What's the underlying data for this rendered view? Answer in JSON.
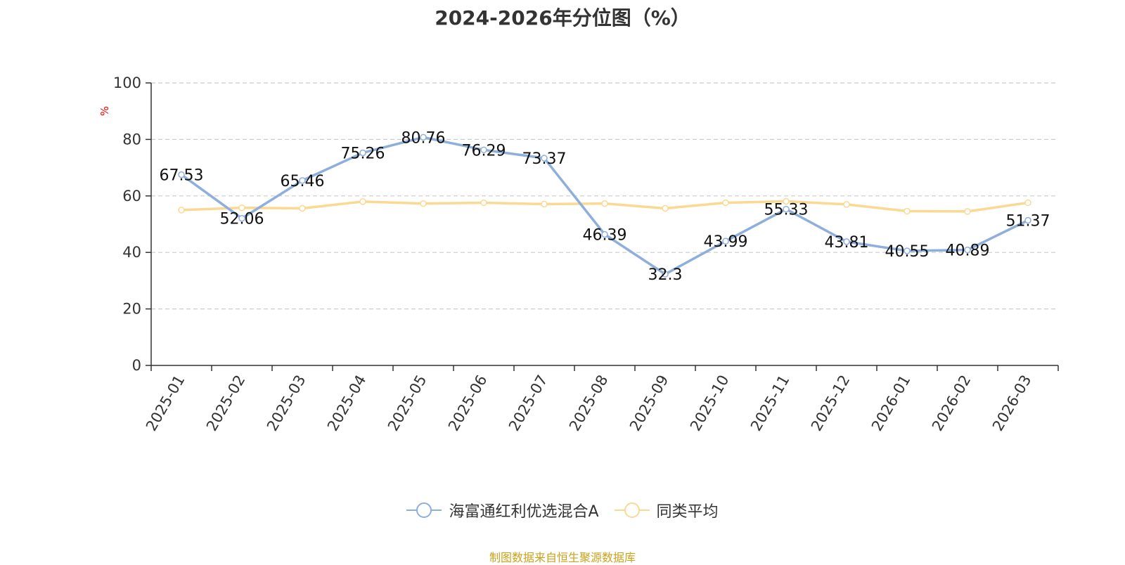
{
  "title": "2024-2026年分位图（%）",
  "source": "制图数据来自恒生聚源数据库",
  "colors": {
    "series1": "#8eaedc",
    "series2": "#fcd992",
    "grid": "#cccccc",
    "axis": "#333333",
    "unit": "#ff0000"
  },
  "chart_data": {
    "type": "line",
    "title": "2024-2026年分位图（%）",
    "ylabel": "%",
    "ylim": [
      0,
      100
    ],
    "yticks": [
      0,
      20,
      40,
      60,
      80,
      100
    ],
    "grid": true,
    "legend_position": "bottom",
    "categories": [
      "2025-01",
      "2025-02",
      "2025-03",
      "2025-04",
      "2025-05",
      "2025-06",
      "2025-07",
      "2025-08",
      "2025-09",
      "2025-10",
      "2025-11",
      "2025-12",
      "2026-01",
      "2026-02",
      "2026-03"
    ],
    "series": [
      {
        "name": "海富通红利优选混合A",
        "values": [
          67.53,
          52.06,
          65.46,
          75.26,
          80.76,
          76.29,
          73.37,
          46.39,
          32.3,
          43.99,
          55.33,
          43.81,
          40.55,
          40.89,
          51.37
        ],
        "show_labels": true
      },
      {
        "name": "同类平均",
        "values": [
          55.0,
          55.8,
          55.6,
          58.0,
          57.3,
          57.6,
          57.1,
          57.3,
          55.6,
          57.6,
          58.1,
          57.0,
          54.6,
          54.5,
          57.6
        ],
        "show_labels": false
      }
    ]
  }
}
